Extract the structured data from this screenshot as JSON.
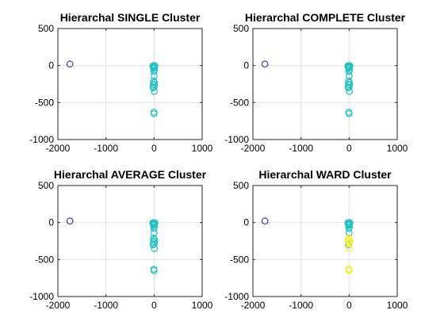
{
  "palette": {
    "cluster1": "#4b3aa6",
    "cluster2": "#22c2c2",
    "cluster3": "#f0f020"
  },
  "chart_data": [
    {
      "type": "scatter",
      "title": "Hierarchal SINGLE Cluster",
      "xlim": [
        -2000,
        1000
      ],
      "ylim": [
        -1000,
        500
      ],
      "xticks": [
        -2000,
        -1000,
        0,
        1000
      ],
      "yticks": [
        500,
        0,
        -500,
        -1000
      ],
      "grid": true,
      "series": [
        {
          "color": "cluster1",
          "points": [
            [
              -1750,
              20
            ]
          ]
        },
        {
          "color": "cluster2",
          "points": [
            [
              -20,
              -10
            ],
            [
              -15,
              -20
            ],
            [
              0,
              -30
            ],
            [
              10,
              -15
            ],
            [
              -10,
              -40
            ],
            [
              5,
              -60
            ],
            [
              -5,
              -80
            ],
            [
              15,
              -5
            ],
            [
              0,
              0
            ],
            [
              -25,
              -5
            ],
            [
              0,
              -140
            ],
            [
              -10,
              -210
            ],
            [
              5,
              -230
            ],
            [
              -15,
              -250
            ],
            [
              10,
              -260
            ],
            [
              0,
              -290
            ],
            [
              -20,
              -300
            ],
            [
              5,
              -350
            ],
            [
              -5,
              -630
            ],
            [
              0,
              -650
            ]
          ]
        }
      ]
    },
    {
      "type": "scatter",
      "title": "Hierarchal COMPLETE Cluster",
      "xlim": [
        -2000,
        1000
      ],
      "ylim": [
        -1000,
        500
      ],
      "xticks": [
        -2000,
        -1000,
        0,
        1000
      ],
      "yticks": [
        500,
        0,
        -500,
        -1000
      ],
      "grid": true,
      "series": [
        {
          "color": "cluster1",
          "points": [
            [
              -1750,
              20
            ]
          ]
        },
        {
          "color": "cluster2",
          "points": [
            [
              -20,
              -10
            ],
            [
              -15,
              -20
            ],
            [
              0,
              -30
            ],
            [
              10,
              -15
            ],
            [
              -10,
              -40
            ],
            [
              5,
              -60
            ],
            [
              -5,
              -80
            ],
            [
              15,
              -5
            ],
            [
              0,
              0
            ],
            [
              -25,
              -5
            ],
            [
              0,
              -140
            ],
            [
              -10,
              -210
            ],
            [
              5,
              -230
            ],
            [
              -15,
              -250
            ],
            [
              10,
              -260
            ],
            [
              0,
              -290
            ],
            [
              -20,
              -300
            ],
            [
              5,
              -350
            ],
            [
              -5,
              -630
            ],
            [
              0,
              -650
            ]
          ]
        }
      ]
    },
    {
      "type": "scatter",
      "title": "Hierarchal AVERAGE Cluster",
      "xlim": [
        -2000,
        1000
      ],
      "ylim": [
        -1000,
        500
      ],
      "xticks": [
        -2000,
        -1000,
        0,
        1000
      ],
      "yticks": [
        500,
        0,
        -500,
        -1000
      ],
      "grid": true,
      "series": [
        {
          "color": "cluster1",
          "points": [
            [
              -1750,
              20
            ]
          ]
        },
        {
          "color": "cluster2",
          "points": [
            [
              -20,
              -10
            ],
            [
              -15,
              -20
            ],
            [
              0,
              -30
            ],
            [
              10,
              -15
            ],
            [
              -10,
              -40
            ],
            [
              5,
              -60
            ],
            [
              -5,
              -80
            ],
            [
              15,
              -5
            ],
            [
              0,
              0
            ],
            [
              -25,
              -5
            ],
            [
              0,
              -140
            ],
            [
              -10,
              -210
            ],
            [
              5,
              -230
            ],
            [
              -15,
              -250
            ],
            [
              10,
              -260
            ],
            [
              0,
              -290
            ],
            [
              -20,
              -300
            ],
            [
              5,
              -350
            ],
            [
              -5,
              -630
            ],
            [
              0,
              -650
            ]
          ]
        }
      ]
    },
    {
      "type": "scatter",
      "title": "Hierarchal WARD Cluster",
      "xlim": [
        -2000,
        1000
      ],
      "ylim": [
        -1000,
        500
      ],
      "xticks": [
        -2000,
        -1000,
        0,
        1000
      ],
      "yticks": [
        500,
        0,
        -500,
        -1000
      ],
      "grid": true,
      "series": [
        {
          "color": "cluster1",
          "points": [
            [
              -1750,
              20
            ]
          ]
        },
        {
          "color": "cluster2",
          "points": [
            [
              -20,
              -10
            ],
            [
              -15,
              -20
            ],
            [
              0,
              -30
            ],
            [
              10,
              -15
            ],
            [
              -10,
              -40
            ],
            [
              5,
              -60
            ],
            [
              -5,
              -80
            ],
            [
              15,
              -5
            ],
            [
              0,
              0
            ],
            [
              -25,
              -5
            ],
            [
              0,
              -140
            ],
            [
              -15,
              -300
            ]
          ]
        },
        {
          "color": "cluster3",
          "points": [
            [
              -10,
              -210
            ],
            [
              5,
              -230
            ],
            [
              -15,
              -250
            ],
            [
              10,
              -260
            ],
            [
              0,
              -290
            ],
            [
              5,
              -350
            ],
            [
              -5,
              -630
            ],
            [
              0,
              -650
            ]
          ]
        }
      ]
    }
  ]
}
